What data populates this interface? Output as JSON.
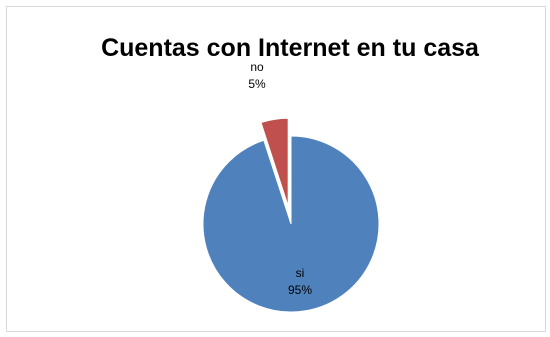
{
  "chart_data": {
    "type": "pie",
    "title": "Cuentas con Internet en tu  casa",
    "categories": [
      "si",
      "no"
    ],
    "values": [
      95,
      5
    ],
    "value_labels": [
      "95%",
      "5%"
    ],
    "exploded": [
      "no"
    ],
    "colors": [
      "#4f81bd",
      "#c0504d"
    ],
    "legend": "none"
  }
}
